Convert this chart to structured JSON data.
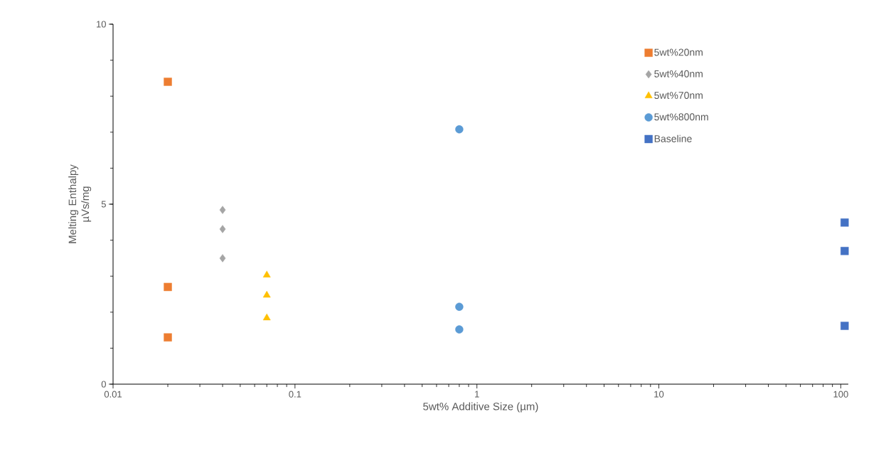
{
  "chart_data": {
    "type": "scatter",
    "xlabel": "5wt% Additive Size (µm)",
    "ylabel": "Melting Enthalpy µVs/mg",
    "log": "x",
    "xlim": [
      0.01,
      110
    ],
    "xticks": [
      0.01,
      0.1,
      1,
      10,
      100
    ],
    "ylim": [
      0,
      10
    ],
    "yticks": [
      0,
      5,
      10
    ],
    "legend": "top right",
    "grid": false,
    "series": [
      {
        "name": "5wt%20nm",
        "color": "#ed7d31",
        "marker": "square",
        "x": [
          0.02,
          0.02,
          0.02
        ],
        "values": [
          8.4,
          2.7,
          1.3
        ]
      },
      {
        "name": "5wt%40nm",
        "color": "#a5a5a5",
        "marker": "diamond",
        "x": [
          0.04,
          0.04,
          0.04
        ],
        "values": [
          4.84,
          4.31,
          3.5
        ]
      },
      {
        "name": "5wt%70nm",
        "color": "#ffc000",
        "marker": "triangle",
        "x": [
          0.07,
          0.07,
          0.07
        ],
        "values": [
          3.03,
          2.47,
          1.84
        ]
      },
      {
        "name": "5wt%800nm",
        "color": "#5b9bd5",
        "marker": "circle",
        "x": [
          0.8,
          0.8,
          0.8
        ],
        "values": [
          7.08,
          2.15,
          1.52
        ]
      },
      {
        "name": "Baseline",
        "color": "#4472c4",
        "marker": "square",
        "x": [
          105,
          105,
          105
        ],
        "values": [
          4.49,
          3.7,
          1.62
        ]
      }
    ]
  }
}
